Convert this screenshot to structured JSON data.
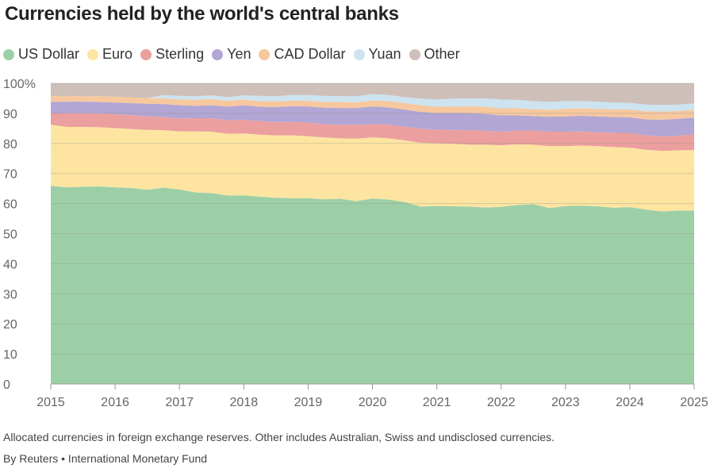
{
  "title": "Currencies held by the world's central banks",
  "footnote": "Allocated currencies in foreign exchange reserves. Other includes Australian, Swiss and undisclosed currencies.",
  "source": "By Reuters • International Monetary Fund",
  "chart_data": {
    "type": "area",
    "stacked": true,
    "x": [
      2015.0,
      2015.25,
      2015.5,
      2015.75,
      2016.0,
      2016.25,
      2016.5,
      2016.75,
      2017.0,
      2017.25,
      2017.5,
      2017.75,
      2018.0,
      2018.25,
      2018.5,
      2018.75,
      2019.0,
      2019.25,
      2019.5,
      2019.75,
      2020.0,
      2020.25,
      2020.5,
      2020.75,
      2021.0,
      2021.25,
      2021.5,
      2021.75,
      2022.0,
      2022.25,
      2022.5,
      2022.75,
      2023.0,
      2023.25,
      2023.5,
      2023.75,
      2024.0,
      2024.25,
      2024.5,
      2024.75,
      2025.0
    ],
    "series": [
      {
        "name": "US Dollar",
        "color": "#9dcfa7",
        "values": [
          65.9,
          65.4,
          65.6,
          65.7,
          65.4,
          65.2,
          64.6,
          65.3,
          64.7,
          63.7,
          63.5,
          62.7,
          62.7,
          62.3,
          61.9,
          61.8,
          61.8,
          61.4,
          61.6,
          60.8,
          61.7,
          61.3,
          60.5,
          59.0,
          59.2,
          59.1,
          59.0,
          58.7,
          58.9,
          59.5,
          59.8,
          58.5,
          59.2,
          59.3,
          59.1,
          58.6,
          58.8,
          58.0,
          57.4,
          57.7,
          57.7
        ]
      },
      {
        "name": "Euro",
        "color": "#fde5a1",
        "values": [
          20.3,
          20.1,
          19.9,
          19.7,
          19.7,
          19.6,
          19.9,
          19.1,
          19.3,
          20.3,
          20.4,
          20.5,
          20.6,
          20.6,
          20.8,
          20.9,
          20.6,
          20.6,
          20.1,
          20.8,
          20.3,
          20.4,
          20.5,
          21.2,
          20.8,
          20.8,
          20.6,
          20.9,
          20.5,
          20.2,
          19.8,
          20.6,
          19.9,
          20.0,
          20.0,
          20.2,
          19.8,
          19.9,
          20.1,
          20.0,
          20.1
        ]
      },
      {
        "name": "Sterling",
        "color": "#ec9f9f",
        "values": [
          3.9,
          4.6,
          4.5,
          4.6,
          4.6,
          4.6,
          4.5,
          4.4,
          4.3,
          4.4,
          4.5,
          4.5,
          4.6,
          4.5,
          4.4,
          4.5,
          4.5,
          4.4,
          4.5,
          4.6,
          4.4,
          4.5,
          4.6,
          4.7,
          4.6,
          4.6,
          4.8,
          4.6,
          4.5,
          4.6,
          4.7,
          4.8,
          4.8,
          4.7,
          4.6,
          4.7,
          4.9,
          4.8,
          4.9,
          4.9,
          5.2
        ]
      },
      {
        "name": "Yen",
        "color": "#b1a6d4",
        "values": [
          3.7,
          3.8,
          3.9,
          3.8,
          3.9,
          4.0,
          4.2,
          4.3,
          4.4,
          4.1,
          4.3,
          4.5,
          4.8,
          4.8,
          5.0,
          5.2,
          5.4,
          5.5,
          5.6,
          5.6,
          5.9,
          5.8,
          5.7,
          5.6,
          5.5,
          5.6,
          5.7,
          5.6,
          5.4,
          5.0,
          4.8,
          5.0,
          5.1,
          5.2,
          5.3,
          5.3,
          5.2,
          5.3,
          5.5,
          5.6,
          5.6
        ]
      },
      {
        "name": "CAD Dollar",
        "color": "#f7c89e",
        "values": [
          1.9,
          1.9,
          1.8,
          1.9,
          1.9,
          1.9,
          1.9,
          1.9,
          2.0,
          2.0,
          2.1,
          2.0,
          1.9,
          1.9,
          1.9,
          1.8,
          1.9,
          1.9,
          2.0,
          1.9,
          2.0,
          2.1,
          2.1,
          2.2,
          2.1,
          2.2,
          2.3,
          2.4,
          2.4,
          2.4,
          2.3,
          2.3,
          2.5,
          2.5,
          2.5,
          2.5,
          2.6,
          2.7,
          2.7,
          2.6,
          2.6
        ]
      },
      {
        "name": "Yuan",
        "color": "#cde3f0",
        "values": [
          0.0,
          0.0,
          0.0,
          0.0,
          0.0,
          0.0,
          0.0,
          1.1,
          1.1,
          1.2,
          1.2,
          1.2,
          1.4,
          1.7,
          1.7,
          1.9,
          1.9,
          2.0,
          1.9,
          2.0,
          2.1,
          2.0,
          2.0,
          2.2,
          2.4,
          2.6,
          2.6,
          2.8,
          2.9,
          2.8,
          2.7,
          2.6,
          2.6,
          2.4,
          2.4,
          2.3,
          2.2,
          2.2,
          2.2,
          2.1,
          2.1
        ]
      },
      {
        "name": "Other",
        "color": "#cebfb8",
        "values": [
          4.3,
          4.2,
          4.3,
          4.3,
          4.5,
          4.7,
          4.9,
          3.9,
          4.2,
          4.3,
          4.0,
          4.6,
          4.0,
          4.2,
          4.3,
          3.9,
          3.9,
          4.2,
          4.3,
          4.3,
          3.6,
          3.9,
          4.6,
          5.1,
          5.4,
          5.1,
          5.0,
          5.0,
          5.4,
          5.5,
          5.9,
          6.2,
          5.9,
          5.9,
          6.1,
          6.4,
          6.5,
          7.1,
          7.2,
          7.1,
          6.7
        ]
      }
    ],
    "xticks": [
      "2015",
      "2016",
      "2017",
      "2018",
      "2019",
      "2020",
      "2021",
      "2022",
      "2023",
      "2024",
      "2025"
    ],
    "yticks": [
      "0",
      "10",
      "20",
      "30",
      "40",
      "50",
      "60",
      "70",
      "80",
      "90",
      "100%"
    ],
    "ylim": [
      0,
      100
    ],
    "xlim": [
      2015,
      2025
    ],
    "grid": true,
    "legend_position": "top-left"
  }
}
